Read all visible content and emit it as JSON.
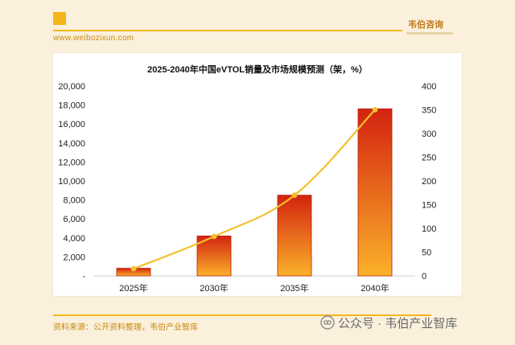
{
  "header": {
    "url": "www.weibozixun.com",
    "brand": "韦伯咨询"
  },
  "chart_data": {
    "type": "bar",
    "title": "2025-2040年中国eVTOL销量及市场规模预测（架，%）",
    "categories": [
      "2025年",
      "2030年",
      "2035年",
      "2040年"
    ],
    "series": [
      {
        "type": "bar",
        "axis": "left",
        "values": [
          800,
          4200,
          8500,
          17600
        ]
      },
      {
        "type": "line",
        "axis": "right",
        "values": [
          15,
          83,
          170,
          350
        ]
      }
    ],
    "left_axis": {
      "range": [
        0,
        20000
      ],
      "ticks": [
        "-",
        "2,000",
        "4,000",
        "6,000",
        "8,000",
        "10,000",
        "12,000",
        "14,000",
        "16,000",
        "18,000",
        "20,000"
      ]
    },
    "right_axis": {
      "range": [
        0,
        400
      ],
      "ticks": [
        "0",
        "50",
        "100",
        "150",
        "200",
        "250",
        "300",
        "350",
        "400"
      ]
    },
    "colors": {
      "bar_top": "#d3230f",
      "bar_bottom": "#fbb12a",
      "bar_edge": "#b81c0c",
      "line": "#f2c12e"
    },
    "legend": "none",
    "grid": false
  },
  "footer": {
    "source": "资料来源：公开资料整理，韦伯产业智库",
    "watermark": "公众号 · 韦伯产业智库",
    "watermark_icon": "wechat-official-account-icon"
  }
}
